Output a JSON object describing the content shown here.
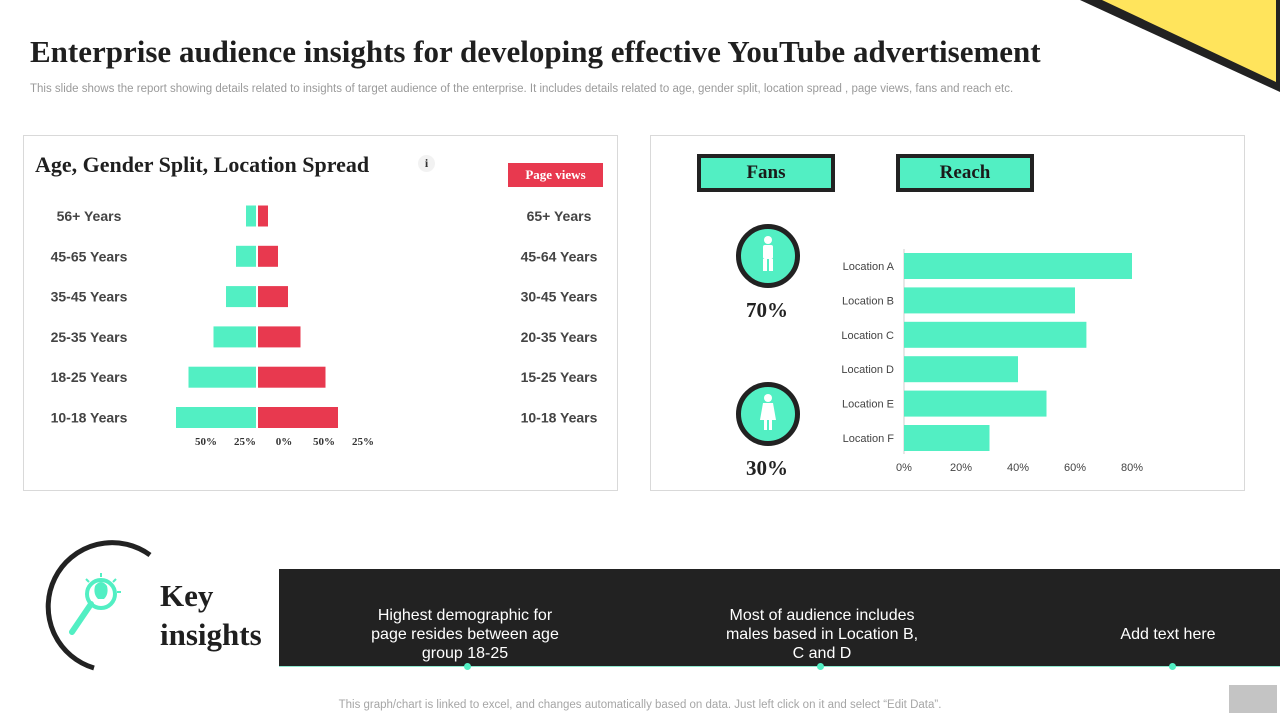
{
  "title": "Enterprise audience insights for developing effective YouTube advertisement",
  "subtitle": "This slide shows the report showing details related to insights of target audience of the enterprise. It includes details related to age, gender split, location spread , page views, fans and reach etc.",
  "colors": {
    "accent_teal": "#52efc3",
    "accent_red": "#e8394f",
    "dark": "#222222",
    "corner_yellow": "#ffe45c"
  },
  "left_panel": {
    "title": "Age, Gender Split, Location Spread",
    "info_icon_glyph": "i",
    "page_views_button": "Page views"
  },
  "right_panel": {
    "fans_label": "Fans",
    "reach_label": "Reach",
    "male_icon": "male-person-icon",
    "female_icon": "female-person-icon",
    "male_percent": "70%",
    "female_percent": "30%"
  },
  "key_insights": {
    "title_line1": "Key",
    "title_line2": "insights",
    "icon": "lightbulb-magnifier-icon",
    "items": [
      "Highest demographic for page resides between age group 18-25",
      "Most of audience includes males based in Location B, C and D",
      "Add text here"
    ]
  },
  "footnote": "This graph/chart is linked to excel,  and changes automatically based on data. Just left click on it and select “Edit Data”.",
  "chart_data": [
    {
      "type": "bar",
      "orientation": "horizontal-butterfly",
      "categories_left": [
        "56+ Years",
        "45-65 Years",
        "35-45 Years",
        "25-35 Years",
        "18-25 Years",
        "10-18 Years"
      ],
      "categories_right": [
        "65+ Years",
        "45-64 Years",
        "30-45 Years",
        "20-35 Years",
        "15-25 Years",
        "10-18 Years"
      ],
      "series": [
        {
          "color": "#52efc3",
          "values": [
            4,
            8,
            12,
            17,
            27,
            32
          ]
        },
        {
          "color": "#e8394f",
          "values": [
            4,
            8,
            12,
            17,
            27,
            32
          ]
        }
      ],
      "x_tick_labels": [
        "50%",
        "25%",
        "0%",
        "50%",
        "25%"
      ],
      "grid": false
    },
    {
      "type": "bar",
      "orientation": "horizontal",
      "categories": [
        "Location A",
        "Location B",
        "Location C",
        "Location D",
        "Location E",
        "Location F"
      ],
      "values": [
        80,
        60,
        64,
        40,
        50,
        30
      ],
      "color": "#52efc3",
      "xlim": [
        0,
        80
      ],
      "x_tick_labels": [
        "0%",
        "20%",
        "40%",
        "60%",
        "80%"
      ],
      "grid": false
    }
  ]
}
